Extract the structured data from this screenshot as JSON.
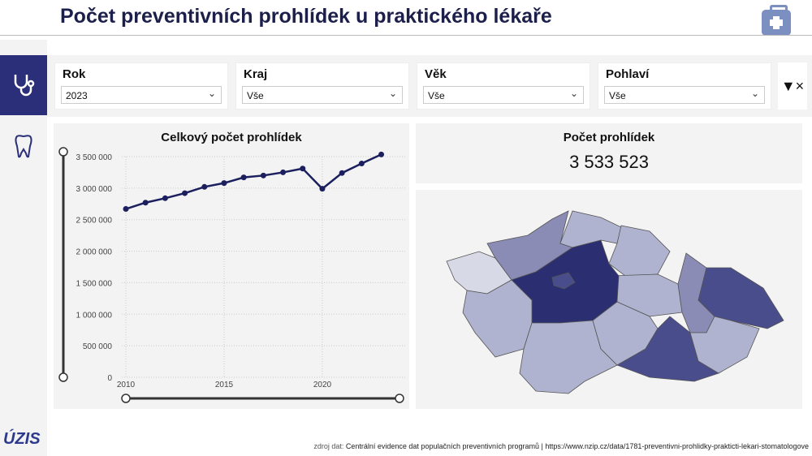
{
  "header": {
    "title": "Počet preventivních prohlídek u praktického lékaře",
    "icon": "medical-kit-icon"
  },
  "sidebar": {
    "items": [
      {
        "icon": "stethoscope-icon",
        "active": true
      },
      {
        "icon": "tooth-icon",
        "active": false
      }
    ],
    "logo": "ÚZIS"
  },
  "filters": [
    {
      "label": "Rok",
      "value": "2023"
    },
    {
      "label": "Kraj",
      "value": "Vše"
    },
    {
      "label": "Věk",
      "value": "Vše"
    },
    {
      "label": "Pohlaví",
      "value": "Vše"
    }
  ],
  "clear_filters_icon": "filter-clear-icon",
  "kpi": {
    "label": "Počet prohlídek",
    "value": "3 533 523"
  },
  "chart_data": {
    "type": "line",
    "title": "Celkový počet prohlídek",
    "x": [
      2010,
      2011,
      2012,
      2013,
      2014,
      2015,
      2016,
      2017,
      2018,
      2019,
      2020,
      2021,
      2022,
      2023
    ],
    "values": [
      2670000,
      2770000,
      2840000,
      2920000,
      3020000,
      3080000,
      3170000,
      3200000,
      3250000,
      3310000,
      2990000,
      3240000,
      3390000,
      3533523
    ],
    "ylim": [
      0,
      3500000
    ],
    "yticks": [
      "0",
      "500 000",
      "1 000 000",
      "1 500 000",
      "2 000 000",
      "2 500 000",
      "3 000 000",
      "3 500 000"
    ],
    "xticks": [
      "2010",
      "2015",
      "2020"
    ],
    "grid": true,
    "color": "#1b1f5e"
  },
  "map": {
    "colors": {
      "high": "#2b2f72",
      "mid": "#4a4d8c",
      "low": "#b0b3cf",
      "lowest": "#d8d9e6"
    }
  },
  "footer": {
    "prefix": "zdroj dat:",
    "source": "Centrální evidence dat populačních preventivních programů | https://www.nzip.cz/data/1781-preventivni-prohlidky-prakticti-lekari-stomatologove"
  }
}
